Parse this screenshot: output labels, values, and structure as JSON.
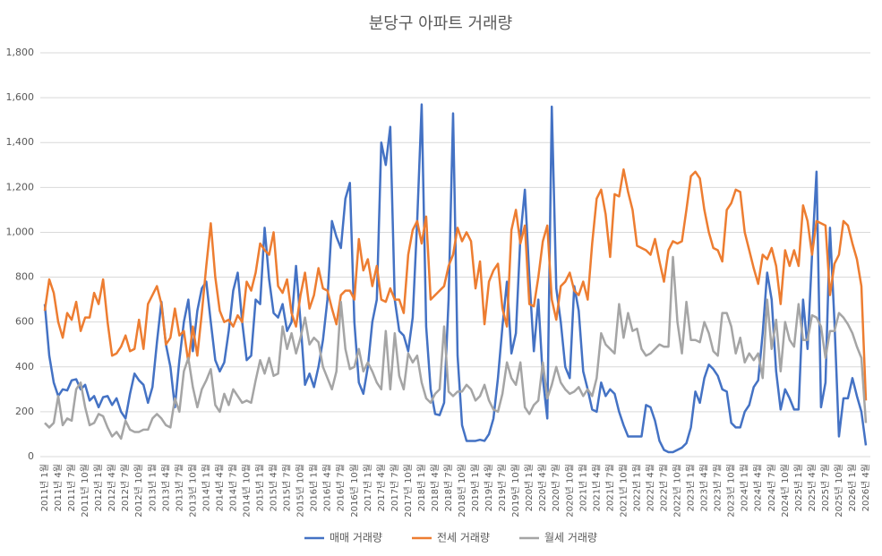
{
  "chart_data": {
    "type": "line",
    "title": "분당구 아파트 거래량",
    "categories": [
      "2011년 1월",
      null,
      null,
      "2011년 4월",
      null,
      null,
      "2011년 7월",
      null,
      null,
      "2011년 10월",
      null,
      null,
      "2012년 1월",
      null,
      null,
      "2012년 4월",
      null,
      null,
      "2012년 7월",
      null,
      null,
      "2012년 10월",
      null,
      null,
      "2013년 1월",
      null,
      null,
      "2013년 4월",
      null,
      null,
      "2013년 7월",
      null,
      null,
      "2013년 10월",
      null,
      null,
      "2014년 1월",
      null,
      null,
      "2014년 4월",
      null,
      null,
      "2014년 7월",
      null,
      null,
      "2014년 10월",
      null,
      null,
      "2015년 1월",
      null,
      null,
      "2015년 4월",
      null,
      null,
      "2015년 7월",
      null,
      null,
      "2015년 10월",
      null,
      null,
      "2016년 1월",
      null,
      null,
      "2016년 4월",
      null,
      null,
      "2016년 7월",
      null,
      null,
      "2016년 10월",
      null,
      null,
      "2017년 1월",
      null,
      null,
      "2017년 4월",
      null,
      null,
      "2017년 7월",
      null,
      null,
      "2017년 10월",
      null,
      null,
      "2018년 1월",
      null,
      null,
      "2018년 4월",
      null,
      null,
      "2018년 7월",
      null,
      null,
      "2018년 10월",
      null,
      null,
      "2019년 1월",
      null,
      null,
      "2019년 4월",
      null,
      null,
      "2019년 7월",
      null,
      null,
      "2019년 10월",
      null,
      null,
      "2020년 1월",
      null,
      null,
      "2020년 4월",
      null,
      null,
      "2020년 7월",
      null,
      null,
      "2020년 10월",
      null,
      null,
      "2021년 1월",
      null,
      null,
      "2021년 4월",
      null,
      null,
      "2021년 7월",
      null,
      null,
      "2021년 10월",
      null,
      null,
      "2022년 1월",
      null,
      null,
      "2022년 4월",
      null,
      null,
      "2022년 7월",
      null,
      null,
      "2022년 10월",
      null,
      null,
      "2023년 1월",
      null,
      null,
      "2023년 4월",
      null,
      null,
      "2023년 7월",
      null,
      null,
      "2023년 10월",
      null,
      null,
      "2024년 1월",
      null,
      null,
      "2024년 4월",
      null,
      null,
      "2024년 7월",
      null,
      null,
      "2024년 10월",
      null,
      null,
      "2025년 1월",
      null,
      null,
      "2025년 4월",
      null,
      null,
      "2025년 7월",
      null,
      null,
      "2025년 10월",
      null,
      null,
      "2026년 1월",
      null,
      null,
      "2026년 4월"
    ],
    "series": [
      {
        "name": "매매 거래량",
        "color": "#4472c4",
        "values": [
          680,
          450,
          330,
          270,
          300,
          295,
          340,
          345,
          300,
          320,
          250,
          270,
          220,
          265,
          270,
          230,
          260,
          200,
          170,
          280,
          370,
          340,
          320,
          240,
          310,
          510,
          690,
          500,
          400,
          220,
          430,
          600,
          700,
          470,
          650,
          750,
          780,
          600,
          430,
          380,
          420,
          560,
          740,
          820,
          600,
          430,
          450,
          700,
          680,
          1020,
          790,
          640,
          620,
          680,
          560,
          600,
          850,
          600,
          320,
          370,
          310,
          400,
          520,
          700,
          1050,
          980,
          930,
          1150,
          1220,
          600,
          330,
          280,
          400,
          600,
          700,
          1400,
          1300,
          1470,
          700,
          560,
          540,
          470,
          620,
          1050,
          1570,
          580,
          300,
          190,
          185,
          240,
          700,
          1530,
          450,
          140,
          70,
          70,
          70,
          75,
          70,
          100,
          170,
          350,
          580,
          780,
          460,
          550,
          980,
          1190,
          800,
          470,
          700,
          350,
          170,
          1560,
          750,
          600,
          400,
          350,
          760,
          650,
          380,
          300,
          210,
          200,
          330,
          270,
          300,
          280,
          200,
          140,
          90,
          90,
          90,
          90,
          230,
          220,
          160,
          70,
          30,
          20,
          20,
          30,
          40,
          60,
          130,
          290,
          240,
          350,
          410,
          390,
          360,
          300,
          290,
          150,
          130,
          130,
          200,
          230,
          310,
          340,
          550,
          820,
          700,
          380,
          210,
          300,
          260,
          210,
          210,
          700,
          480,
          900,
          1270,
          220,
          330,
          1020,
          600,
          90,
          260,
          260,
          350,
          270,
          200,
          50
        ]
      },
      {
        "name": "전세 거래량",
        "color": "#ed7d31",
        "values": [
          650,
          790,
          730,
          600,
          530,
          640,
          610,
          690,
          560,
          620,
          620,
          730,
          680,
          790,
          600,
          450,
          460,
          490,
          540,
          470,
          480,
          610,
          480,
          680,
          720,
          760,
          680,
          500,
          530,
          660,
          540,
          560,
          420,
          580,
          450,
          640,
          850,
          1040,
          800,
          650,
          600,
          610,
          580,
          630,
          600,
          780,
          740,
          820,
          950,
          920,
          900,
          1000,
          760,
          730,
          790,
          640,
          580,
          720,
          820,
          660,
          720,
          840,
          750,
          740,
          660,
          590,
          720,
          740,
          740,
          700,
          970,
          830,
          880,
          760,
          850,
          700,
          690,
          750,
          700,
          700,
          640,
          900,
          1010,
          1050,
          950,
          1070,
          700,
          720,
          740,
          760,
          850,
          900,
          1020,
          960,
          1000,
          960,
          750,
          870,
          590,
          780,
          830,
          860,
          660,
          580,
          1010,
          1100,
          950,
          1030,
          680,
          670,
          800,
          960,
          1030,
          700,
          610,
          760,
          780,
          820,
          740,
          720,
          780,
          700,
          950,
          1150,
          1190,
          1080,
          890,
          1170,
          1160,
          1280,
          1180,
          1100,
          940,
          930,
          920,
          900,
          970,
          870,
          780,
          920,
          960,
          950,
          960,
          1100,
          1250,
          1270,
          1240,
          1100,
          1000,
          930,
          920,
          870,
          1100,
          1130,
          1190,
          1180,
          1000,
          920,
          840,
          770,
          900,
          880,
          930,
          850,
          680,
          920,
          850,
          920,
          850,
          1120,
          1050,
          900,
          1050,
          1040,
          1030,
          720,
          860,
          900,
          1050,
          1030,
          950,
          880,
          760,
          250
        ]
      },
      {
        "name": "월세 거래량",
        "color": "#a5a5a5",
        "values": [
          150,
          130,
          150,
          270,
          140,
          170,
          160,
          300,
          330,
          220,
          140,
          150,
          190,
          180,
          130,
          90,
          110,
          80,
          160,
          120,
          110,
          110,
          120,
          120,
          170,
          190,
          170,
          140,
          130,
          260,
          200,
          380,
          440,
          310,
          220,
          300,
          340,
          390,
          230,
          200,
          280,
          230,
          300,
          270,
          240,
          250,
          240,
          340,
          430,
          370,
          440,
          360,
          370,
          580,
          480,
          550,
          460,
          530,
          620,
          500,
          530,
          510,
          400,
          350,
          300,
          380,
          690,
          480,
          390,
          400,
          480,
          380,
          420,
          380,
          330,
          300,
          560,
          300,
          550,
          360,
          300,
          460,
          420,
          450,
          330,
          260,
          240,
          280,
          300,
          580,
          290,
          270,
          290,
          290,
          320,
          300,
          250,
          270,
          320,
          250,
          210,
          200,
          280,
          420,
          350,
          320,
          420,
          220,
          190,
          230,
          250,
          420,
          260,
          320,
          400,
          330,
          300,
          280,
          290,
          310,
          270,
          300,
          270,
          350,
          550,
          500,
          480,
          460,
          680,
          530,
          640,
          560,
          570,
          480,
          450,
          460,
          480,
          500,
          490,
          490,
          890,
          600,
          460,
          690,
          520,
          520,
          510,
          600,
          550,
          470,
          450,
          640,
          640,
          580,
          460,
          530,
          420,
          460,
          430,
          460,
          350,
          700,
          480,
          610,
          380,
          600,
          520,
          490,
          680,
          520,
          520,
          630,
          620,
          580,
          440,
          560,
          560,
          640,
          620,
          590,
          550,
          490,
          440,
          150
        ]
      }
    ],
    "ylim": [
      0,
      1800
    ],
    "yticks": [
      0,
      200,
      400,
      600,
      800,
      {
        "value": 1000,
        "label": "1,000"
      },
      {
        "value": 1200,
        "label": "1,200"
      },
      {
        "value": 1400,
        "label": "1,400"
      },
      {
        "value": 1600,
        "label": "1,600"
      },
      {
        "value": 1800,
        "label": "1,800"
      }
    ],
    "grid": true,
    "legend": "bottom"
  }
}
